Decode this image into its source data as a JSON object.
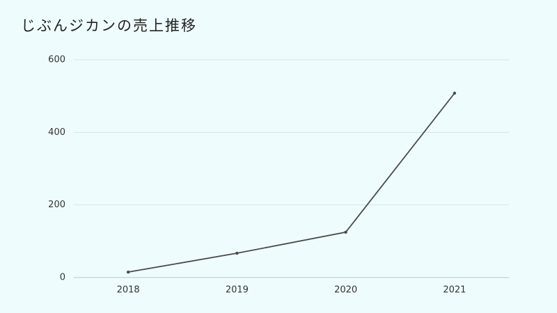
{
  "chart_data": {
    "type": "line",
    "title": "じぶんジカンの売上推移",
    "categories": [
      "2018",
      "2019",
      "2020",
      "2021"
    ],
    "values": [
      15,
      67,
      125,
      508
    ],
    "color": "#4a4a4a",
    "ylim": [
      0,
      600
    ],
    "yticks": [
      0,
      200,
      400,
      600
    ],
    "grid": true
  }
}
